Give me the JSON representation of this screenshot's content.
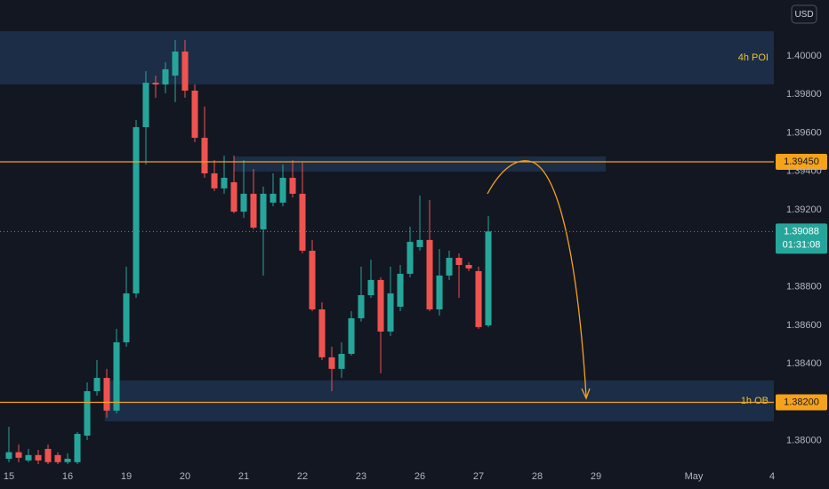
{
  "chart_data": {
    "type": "candlestick",
    "currency": "USD",
    "x": [
      0,
      1,
      2,
      3,
      4,
      5,
      6,
      7,
      8,
      9,
      10,
      11,
      12,
      13,
      14,
      15,
      16,
      17,
      18,
      19,
      20,
      21,
      22,
      23,
      24,
      25,
      26,
      27,
      28,
      29,
      30,
      31,
      32,
      33,
      34,
      35,
      36,
      37,
      38,
      39,
      40,
      41,
      42,
      43,
      44,
      45,
      46,
      47,
      48,
      49
    ],
    "open": [
      1.37907,
      1.37941,
      1.37898,
      1.37926,
      1.37958,
      1.37926,
      1.37889,
      1.37889,
      1.38027,
      1.38258,
      1.38327,
      1.38157,
      1.38512,
      1.38766,
      1.3963,
      1.39861,
      1.39852,
      1.39898,
      1.40023,
      1.3982,
      1.39575,
      1.3939,
      1.39312,
      1.39344,
      1.39191,
      1.39284,
      1.39099,
      1.39238,
      1.39238,
      1.39367,
      1.39284,
      1.38988,
      1.38683,
      1.38434,
      1.38374,
      1.38452,
      1.38637,
      1.38757,
      1.38836,
      1.38568,
      1.38697,
      1.38868,
      1.39007,
      1.39044,
      1.38683,
      1.38859,
      1.38951,
      1.38914,
      1.38882,
      1.386
    ],
    "high": [
      1.38073,
      1.37981,
      1.37958,
      1.37953,
      1.37981,
      1.37941,
      1.37935,
      1.38046,
      1.38304,
      1.3842,
      1.38374,
      1.38582,
      1.38905,
      1.39667,
      1.39921,
      1.39898,
      1.39968,
      1.40083,
      1.40083,
      1.39852,
      1.39737,
      1.39459,
      1.39482,
      1.39482,
      1.39459,
      1.39413,
      1.39321,
      1.3939,
      1.39436,
      1.39459,
      1.39446,
      1.39044,
      1.3872,
      1.38489,
      1.38512,
      1.38674,
      1.38905,
      1.38942,
      1.3885,
      1.38905,
      1.38914,
      1.39113,
      1.39275,
      1.39251,
      1.38997,
      1.38988,
      1.38974,
      1.38928,
      1.38905,
      1.39168
    ],
    "low": [
      1.37889,
      1.37889,
      1.37889,
      1.37879,
      1.37879,
      1.37879,
      1.37879,
      1.37879,
      1.38004,
      1.38235,
      1.3812,
      1.38143,
      1.38489,
      1.38743,
      1.39436,
      1.39783,
      1.39806,
      1.3976,
      1.39783,
      1.39552,
      1.39367,
      1.39298,
      1.39284,
      1.39182,
      1.39159,
      1.39099,
      1.38859,
      1.39219,
      1.39219,
      1.39265,
      1.38974,
      1.38674,
      1.3842,
      1.38258,
      1.38327,
      1.38443,
      1.38619,
      1.38743,
      1.38351,
      1.38545,
      1.38674,
      1.3885,
      1.38988,
      1.38674,
      1.38651,
      1.38836,
      1.38743,
      1.38882,
      1.38582,
      1.38591
    ],
    "close": [
      1.37941,
      1.37912,
      1.37926,
      1.37898,
      1.37889,
      1.37889,
      1.37907,
      1.38036,
      1.38258,
      1.38327,
      1.38157,
      1.38512,
      1.38766,
      1.3963,
      1.39861,
      1.39852,
      1.39931,
      1.40023,
      1.3982,
      1.39575,
      1.3939,
      1.39312,
      1.39367,
      1.39191,
      1.39284,
      1.39108,
      1.39284,
      1.39284,
      1.39367,
      1.39284,
      1.38988,
      1.38683,
      1.38434,
      1.38374,
      1.38452,
      1.38637,
      1.38757,
      1.38836,
      1.38568,
      1.38766,
      1.38868,
      1.39034,
      1.39044,
      1.38683,
      1.38859,
      1.38951,
      1.38914,
      1.38896,
      1.38591,
      1.39088
    ],
    "up_color": "#26a69a",
    "down_color": "#ef5350",
    "countdown": "01:31:08",
    "xlim": [
      -0.91,
      78.18
    ],
    "xticks": [
      {
        "value": 0,
        "label": "15"
      },
      {
        "value": 6,
        "label": "16"
      },
      {
        "value": 12,
        "label": "19"
      },
      {
        "value": 18,
        "label": "20"
      },
      {
        "value": 24,
        "label": "21"
      },
      {
        "value": 30,
        "label": "22"
      },
      {
        "value": 36,
        "label": "23"
      },
      {
        "value": 42,
        "label": "26"
      },
      {
        "value": 48,
        "label": "27"
      },
      {
        "value": 54,
        "label": "28"
      },
      {
        "value": 60,
        "label": "29"
      },
      {
        "value": 70,
        "label": "May"
      },
      {
        "value": 78,
        "label": "4"
      }
    ],
    "ylim": [
      1.37879,
      1.40291
    ],
    "yticks": [
      {
        "value": 1.38,
        "label": "1.38000"
      },
      {
        "value": 1.384,
        "label": "1.38400"
      },
      {
        "value": 1.386,
        "label": "1.38600"
      },
      {
        "value": 1.388,
        "label": "1.38800"
      },
      {
        "value": 1.392,
        "label": "1.39200"
      },
      {
        "value": 1.394,
        "label": "1.39400"
      },
      {
        "value": 1.396,
        "label": "1.39600"
      },
      {
        "value": 1.398,
        "label": "1.39800"
      },
      {
        "value": 1.4,
        "label": "1.40000"
      }
    ],
    "levels": [
      {
        "value": 1.3945,
        "label": "1.39450",
        "color": "#f7a21b"
      },
      {
        "value": 1.382,
        "label": "1.38200",
        "color": "#f7a21b"
      }
    ],
    "zone_color": "#1b2d47",
    "zone_label_color": "#f0c230",
    "zones": [
      {
        "label": "4h POI",
        "xlim": [
          -0.91,
          78.18
        ],
        "ylim": [
          1.39852,
          1.40129
        ]
      },
      {
        "xlim": [
          23,
          61
        ],
        "ylim": [
          1.39399,
          1.39478
        ]
      },
      {
        "label": "1h OB",
        "xlim": [
          9.8,
          78.18
        ],
        "ylim": [
          1.38101,
          1.38314
        ]
      }
    ]
  }
}
